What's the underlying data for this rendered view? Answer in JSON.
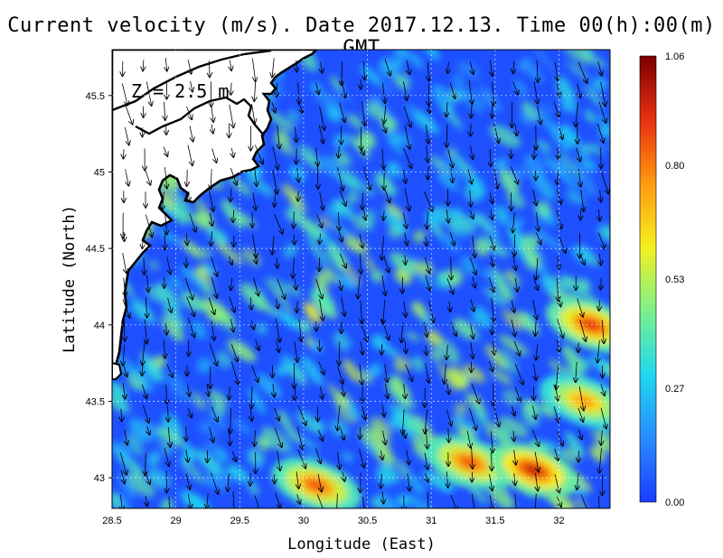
{
  "title": "Current velocity (m/s). Date 2017.12.13. Time 00(h):00(m) GMT",
  "depth_label": "Z = 2.5 m",
  "chart_data": {
    "type": "heatmap",
    "title": "Current velocity (m/s). Date 2017.12.13. Time 00(h):00(m) GMT",
    "xlabel": "Longitude (East)",
    "ylabel": "Latitude (North)",
    "xlim": [
      28.5,
      32.4
    ],
    "ylim": [
      42.8,
      45.8
    ],
    "x_ticks": [
      "28.5",
      "29",
      "29.5",
      "30",
      "30.5",
      "31",
      "31.5",
      "32"
    ],
    "y_ticks": [
      "43",
      "43.5",
      "44",
      "44.5",
      "45",
      "45.5"
    ],
    "grid": true,
    "colorbar": {
      "label_values": [
        "0.00",
        "0.27",
        "0.53",
        "0.80",
        "1.06"
      ],
      "min": 0.0,
      "max": 1.06,
      "colors": [
        "#1a3cff",
        "#2a8cff",
        "#20d8f0",
        "#7cf08a",
        "#f4f020",
        "#ff9a10",
        "#e83010",
        "#7a0000"
      ]
    },
    "hotspots": [
      {
        "lon": 31.3,
        "lat": 43.1,
        "speed": 0.85
      },
      {
        "lon": 31.8,
        "lat": 43.05,
        "speed": 0.95
      },
      {
        "lon": 32.25,
        "lat": 44.0,
        "speed": 0.9
      },
      {
        "lon": 30.1,
        "lat": 42.95,
        "speed": 0.85
      },
      {
        "lon": 32.2,
        "lat": 43.5,
        "speed": 0.75
      }
    ]
  }
}
